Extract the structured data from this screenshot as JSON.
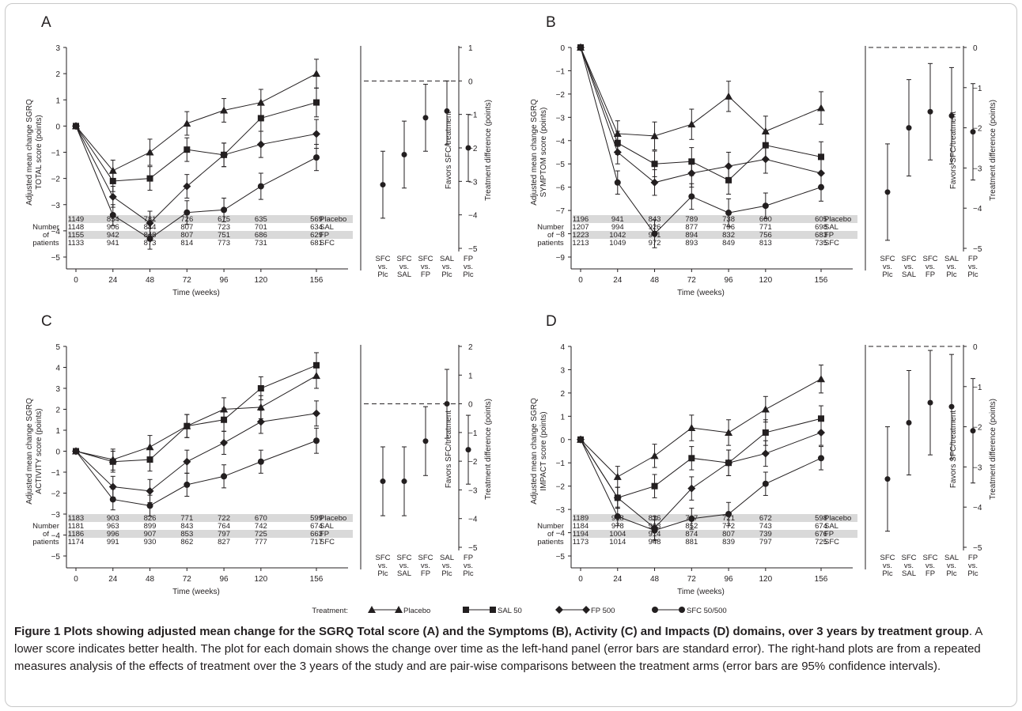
{
  "legend": {
    "title": "Treatment:",
    "items": [
      {
        "label": "Placebo",
        "marker": "triangle"
      },
      {
        "label": "SAL 50",
        "marker": "square"
      },
      {
        "label": "FP 500",
        "marker": "diamond"
      },
      {
        "label": "SFC 50/500",
        "marker": "circle"
      }
    ]
  },
  "caption": {
    "bold": "Figure 1 Plots showing adjusted mean change for the SGRQ Total score (A) and the Symptoms (B), Activity (C) and Impacts (D) domains, over 3 years by treatment group",
    "rest": ". A lower score indicates better health. The plot for each domain shows the change over time as the left-hand panel (error bars are standard error). The right-hand plots are from a repeated measures analysis of the effects of treatment over the 3 years of the study and are pair-wise comparisons between the treatment arms (error bars are 95% confidence intervals)."
  },
  "chart_data": [
    {
      "type": "line",
      "panel": "A",
      "ylabel_lines": [
        "Adjusted mean change SGRQ",
        "TOTAL score (points)"
      ],
      "xlabel": "Time (weeks)",
      "x": [
        0,
        24,
        48,
        72,
        96,
        120,
        156
      ],
      "ylim": [
        -5,
        3
      ],
      "yticks": [
        3,
        2,
        1,
        0,
        -1,
        -2,
        -3,
        -4,
        -5
      ],
      "series": [
        {
          "name": "Placebo",
          "marker": "triangle",
          "values": [
            0,
            -1.7,
            -1.0,
            0.1,
            0.6,
            0.9,
            2.0
          ],
          "se": [
            0,
            0.4,
            0.5,
            0.45,
            0.45,
            0.5,
            0.55
          ]
        },
        {
          "name": "SAL 50",
          "marker": "square",
          "values": [
            0,
            -2.1,
            -2.0,
            -0.9,
            -1.1,
            0.3,
            0.9
          ],
          "se": [
            0,
            0.4,
            0.45,
            0.45,
            0.45,
            0.5,
            0.55
          ]
        },
        {
          "name": "FP 500",
          "marker": "diamond",
          "values": [
            0,
            -2.7,
            -3.7,
            -2.3,
            -1.1,
            -0.7,
            -0.3
          ],
          "se": [
            0,
            0.4,
            0.45,
            0.45,
            0.45,
            0.5,
            0.55
          ]
        },
        {
          "name": "SFC 50/500",
          "marker": "circle",
          "values": [
            0,
            -3.4,
            -4.3,
            -3.3,
            -3.2,
            -2.3,
            -1.2
          ],
          "se": [
            0,
            0.4,
            0.4,
            0.45,
            0.45,
            0.5,
            0.5
          ]
        }
      ],
      "patients": {
        "row_header": [
          "Number",
          "of",
          "patients"
        ],
        "rows": [
          {
            "label": "Placebo",
            "shaded": true,
            "values": [
              "1149",
              "854",
              "781",
              "726",
              "675",
              "635",
              "569"
            ]
          },
          {
            "label": "SAL",
            "shaded": false,
            "values": [
              "1148",
              "906",
              "844",
              "807",
              "723",
              "701",
              "634"
            ]
          },
          {
            "label": "FP",
            "shaded": true,
            "values": [
              "1155",
              "942",
              "848",
              "807",
              "751",
              "686",
              "629"
            ]
          },
          {
            "label": "SFC",
            "shaded": false,
            "values": [
              "1133",
              "941",
              "873",
              "814",
              "773",
              "731",
              "681"
            ]
          }
        ]
      },
      "comparison": {
        "type": "scatter",
        "ylabel_lines": [
          "Favors SFC/treatment",
          "Treatment difference (points)"
        ],
        "ylim": [
          -5,
          1
        ],
        "yticks": [
          1,
          0,
          -1,
          -2,
          -3,
          -4,
          -5
        ],
        "categories": [
          [
            "SFC",
            "vs.",
            "Plc"
          ],
          [
            "SFC",
            "vs.",
            "SAL"
          ],
          [
            "SFC",
            "vs.",
            "FP"
          ],
          [
            "SAL",
            "vs.",
            "Plc"
          ],
          [
            "FP",
            "vs.",
            "Plc"
          ]
        ],
        "estimates": [
          -3.1,
          -2.2,
          -1.1,
          -0.9,
          -2.0
        ],
        "ci": [
          [
            -4.1,
            -2.1
          ],
          [
            -3.2,
            -1.2
          ],
          [
            -2.1,
            -0.1
          ],
          [
            -1.9,
            0.0
          ],
          [
            -3.0,
            -1.0
          ]
        ]
      }
    },
    {
      "type": "line",
      "panel": "B",
      "ylabel_lines": [
        "Adjusted mean change SGRQ",
        "SYMPTOM score (points)"
      ],
      "xlabel": "Time (weeks)",
      "x": [
        0,
        24,
        48,
        72,
        96,
        120,
        156
      ],
      "ylim": [
        -9,
        0
      ],
      "yticks": [
        0,
        -1,
        -2,
        -3,
        -4,
        -5,
        -6,
        -7,
        -8,
        -9
      ],
      "series": [
        {
          "name": "Placebo",
          "marker": "triangle",
          "values": [
            0,
            -3.7,
            -3.8,
            -3.3,
            -2.1,
            -3.6,
            -2.6
          ],
          "se": [
            0,
            0.55,
            0.6,
            0.65,
            0.65,
            0.65,
            0.7
          ]
        },
        {
          "name": "SAL 50",
          "marker": "square",
          "values": [
            0,
            -4.1,
            -5.0,
            -4.9,
            -5.7,
            -4.2,
            -4.7
          ],
          "se": [
            0,
            0.5,
            0.55,
            0.6,
            0.6,
            0.6,
            0.65
          ]
        },
        {
          "name": "FP 500",
          "marker": "diamond",
          "values": [
            0,
            -4.5,
            -5.8,
            -5.4,
            -5.1,
            -4.8,
            -5.4
          ],
          "se": [
            0,
            0.5,
            0.55,
            0.6,
            0.6,
            0.6,
            0.65
          ]
        },
        {
          "name": "SFC 50/500",
          "marker": "circle",
          "values": [
            0,
            -5.8,
            -8.0,
            -6.4,
            -7.1,
            -6.8,
            -6.0
          ],
          "se": [
            0,
            0.5,
            0.6,
            0.55,
            0.6,
            0.55,
            0.6
          ]
        }
      ],
      "patients": {
        "row_header": [
          "Number",
          "of",
          "patients"
        ],
        "rows": [
          {
            "label": "Placebo",
            "shaded": true,
            "values": [
              "1196",
              "941",
              "843",
              "789",
              "738",
              "680",
              "605"
            ]
          },
          {
            "label": "SAL",
            "shaded": false,
            "values": [
              "1207",
              "994",
              "926",
              "877",
              "796",
              "771",
              "698"
            ]
          },
          {
            "label": "FP",
            "shaded": true,
            "values": [
              "1223",
              "1042",
              "941",
              "894",
              "832",
              "756",
              "683"
            ]
          },
          {
            "label": "SFC",
            "shaded": false,
            "values": [
              "1213",
              "1049",
              "972",
              "893",
              "849",
              "813",
              "735"
            ]
          }
        ]
      },
      "comparison": {
        "type": "scatter",
        "ylabel_lines": [
          "Favors SFC/treatment",
          "Treatment difference (points)"
        ],
        "ylim": [
          -5,
          0
        ],
        "yticks": [
          0,
          -1,
          -2,
          -3,
          -4,
          -5
        ],
        "categories": [
          [
            "SFC",
            "vs.",
            "Plc"
          ],
          [
            "SFC",
            "vs.",
            "SAL"
          ],
          [
            "SFC",
            "vs.",
            "FP"
          ],
          [
            "SAL",
            "vs.",
            "Plc"
          ],
          [
            "FP",
            "vs.",
            "Plc"
          ]
        ],
        "estimates": [
          -3.6,
          -2.0,
          -1.6,
          -1.7,
          -2.1
        ],
        "ci": [
          [
            -4.8,
            -2.4
          ],
          [
            -3.2,
            -0.8
          ],
          [
            -2.8,
            -0.4
          ],
          [
            -2.9,
            -0.5
          ],
          [
            -3.3,
            -0.9
          ]
        ]
      }
    },
    {
      "type": "line",
      "panel": "C",
      "ylabel_lines": [
        "Adjusted mean change SGRQ",
        "ACTIVITY score (points)"
      ],
      "xlabel": "Time (weeks)",
      "x": [
        0,
        24,
        48,
        72,
        96,
        120,
        156
      ],
      "ylim": [
        -5,
        5
      ],
      "yticks": [
        5,
        4,
        3,
        2,
        1,
        0,
        -1,
        -2,
        -3,
        -4,
        -5
      ],
      "series": [
        {
          "name": "Placebo",
          "marker": "triangle",
          "values": [
            0,
            -0.4,
            0.2,
            1.2,
            2.0,
            2.1,
            3.6
          ],
          "se": [
            0,
            0.5,
            0.55,
            0.55,
            0.55,
            0.55,
            0.6
          ]
        },
        {
          "name": "SAL 50",
          "marker": "square",
          "values": [
            0,
            -0.5,
            -0.4,
            1.2,
            1.5,
            3.0,
            4.1
          ],
          "se": [
            0,
            0.5,
            0.55,
            0.55,
            0.55,
            0.55,
            0.6
          ]
        },
        {
          "name": "FP 500",
          "marker": "diamond",
          "values": [
            0,
            -1.7,
            -1.9,
            -0.5,
            0.4,
            1.4,
            1.8
          ],
          "se": [
            0,
            0.5,
            0.55,
            0.55,
            0.55,
            0.55,
            0.6
          ]
        },
        {
          "name": "SFC 50/500",
          "marker": "circle",
          "values": [
            0,
            -2.3,
            -2.6,
            -1.6,
            -1.2,
            -0.5,
            0.5
          ],
          "se": [
            0,
            0.5,
            0.5,
            0.55,
            0.55,
            0.55,
            0.6
          ]
        }
      ],
      "patients": {
        "row_header": [
          "Number",
          "of",
          "patients"
        ],
        "rows": [
          {
            "label": "Placebo",
            "shaded": true,
            "values": [
              "1183",
              "903",
              "826",
              "771",
              "722",
              "670",
              "599"
            ]
          },
          {
            "label": "SAL",
            "shaded": false,
            "values": [
              "1181",
              "963",
              "899",
              "843",
              "764",
              "742",
              "674"
            ]
          },
          {
            "label": "FP",
            "shaded": true,
            "values": [
              "1186",
              "996",
              "907",
              "853",
              "797",
              "725",
              "663"
            ]
          },
          {
            "label": "SFC",
            "shaded": false,
            "values": [
              "1174",
              "991",
              "930",
              "862",
              "827",
              "777",
              "717"
            ]
          }
        ]
      },
      "comparison": {
        "type": "scatter",
        "ylabel_lines": [
          "Favors SFC/treatment",
          "Treatment difference (points)"
        ],
        "ylim": [
          -5,
          2
        ],
        "yticks": [
          2,
          1,
          0,
          -1,
          -2,
          -3,
          -4,
          -5
        ],
        "categories": [
          [
            "SFC",
            "vs.",
            "Plc"
          ],
          [
            "SFC",
            "vs.",
            "SAL"
          ],
          [
            "SFC",
            "vs.",
            "FP"
          ],
          [
            "SAL",
            "vs.",
            "Plc"
          ],
          [
            "FP",
            "vs.",
            "Plc"
          ]
        ],
        "estimates": [
          -2.7,
          -2.7,
          -1.3,
          0.0,
          -1.6
        ],
        "ci": [
          [
            -3.9,
            -1.5
          ],
          [
            -3.9,
            -1.5
          ],
          [
            -2.5,
            -0.1
          ],
          [
            -1.2,
            1.2
          ],
          [
            -2.8,
            -0.4
          ]
        ]
      }
    },
    {
      "type": "line",
      "panel": "D",
      "ylabel_lines": [
        "Adjusted mean change SGRQ",
        "IMPACT score (points)"
      ],
      "xlabel": "Time (weeks)",
      "x": [
        0,
        24,
        48,
        72,
        96,
        120,
        156
      ],
      "ylim": [
        -5,
        4
      ],
      "yticks": [
        4,
        3,
        2,
        1,
        0,
        -1,
        -2,
        -3,
        -4,
        -5
      ],
      "series": [
        {
          "name": "Placebo",
          "marker": "triangle",
          "values": [
            0,
            -1.6,
            -0.7,
            0.5,
            0.3,
            1.3,
            2.6
          ],
          "se": [
            0,
            0.45,
            0.5,
            0.55,
            0.55,
            0.55,
            0.6
          ]
        },
        {
          "name": "SAL 50",
          "marker": "square",
          "values": [
            0,
            -2.5,
            -2.0,
            -0.8,
            -1.0,
            0.3,
            0.9
          ],
          "se": [
            0,
            0.45,
            0.5,
            0.5,
            0.55,
            0.55,
            0.55
          ]
        },
        {
          "name": "FP 500",
          "marker": "diamond",
          "values": [
            0,
            -2.5,
            -3.8,
            -2.1,
            -1.0,
            -0.6,
            0.3
          ],
          "se": [
            0,
            0.45,
            0.5,
            0.5,
            0.55,
            0.55,
            0.55
          ]
        },
        {
          "name": "SFC 50/500",
          "marker": "circle",
          "values": [
            0,
            -3.3,
            -3.9,
            -3.4,
            -3.2,
            -1.9,
            -0.8
          ],
          "se": [
            0,
            0.4,
            0.45,
            0.45,
            0.5,
            0.5,
            0.5
          ]
        }
      ],
      "patients": {
        "row_header": [
          "Number",
          "of",
          "patients"
        ],
        "rows": [
          {
            "label": "Placebo",
            "shaded": true,
            "values": [
              "1189",
              "918",
              "836",
              "767",
              "721",
              "672",
              "598"
            ]
          },
          {
            "label": "SAL",
            "shaded": false,
            "values": [
              "1184",
              "978",
              "903",
              "852",
              "772",
              "743",
              "674"
            ]
          },
          {
            "label": "FP",
            "shaded": true,
            "values": [
              "1194",
              "1004",
              "914",
              "874",
              "807",
              "739",
              "676"
            ]
          },
          {
            "label": "SFC",
            "shaded": false,
            "values": [
              "1173",
              "1014",
              "948",
              "881",
              "839",
              "797",
              "725"
            ]
          }
        ]
      },
      "comparison": {
        "type": "scatter",
        "ylabel_lines": [
          "Favors SFC/treatment",
          "Treatment difference (points)"
        ],
        "ylim": [
          -5,
          0
        ],
        "yticks": [
          0,
          -1,
          -2,
          -3,
          -4,
          -5
        ],
        "categories": [
          [
            "SFC",
            "vs.",
            "Plc"
          ],
          [
            "SFC",
            "vs.",
            "SAL"
          ],
          [
            "SFC",
            "vs.",
            "FP"
          ],
          [
            "SAL",
            "vs.",
            "Plc"
          ],
          [
            "FP",
            "vs.",
            "Plc"
          ]
        ],
        "estimates": [
          -3.3,
          -1.9,
          -1.4,
          -1.5,
          -2.1
        ],
        "ci": [
          [
            -4.6,
            -2.0
          ],
          [
            -3.2,
            -0.6
          ],
          [
            -2.7,
            -0.1
          ],
          [
            -2.8,
            -0.2
          ],
          [
            -3.4,
            -0.8
          ]
        ]
      }
    }
  ]
}
